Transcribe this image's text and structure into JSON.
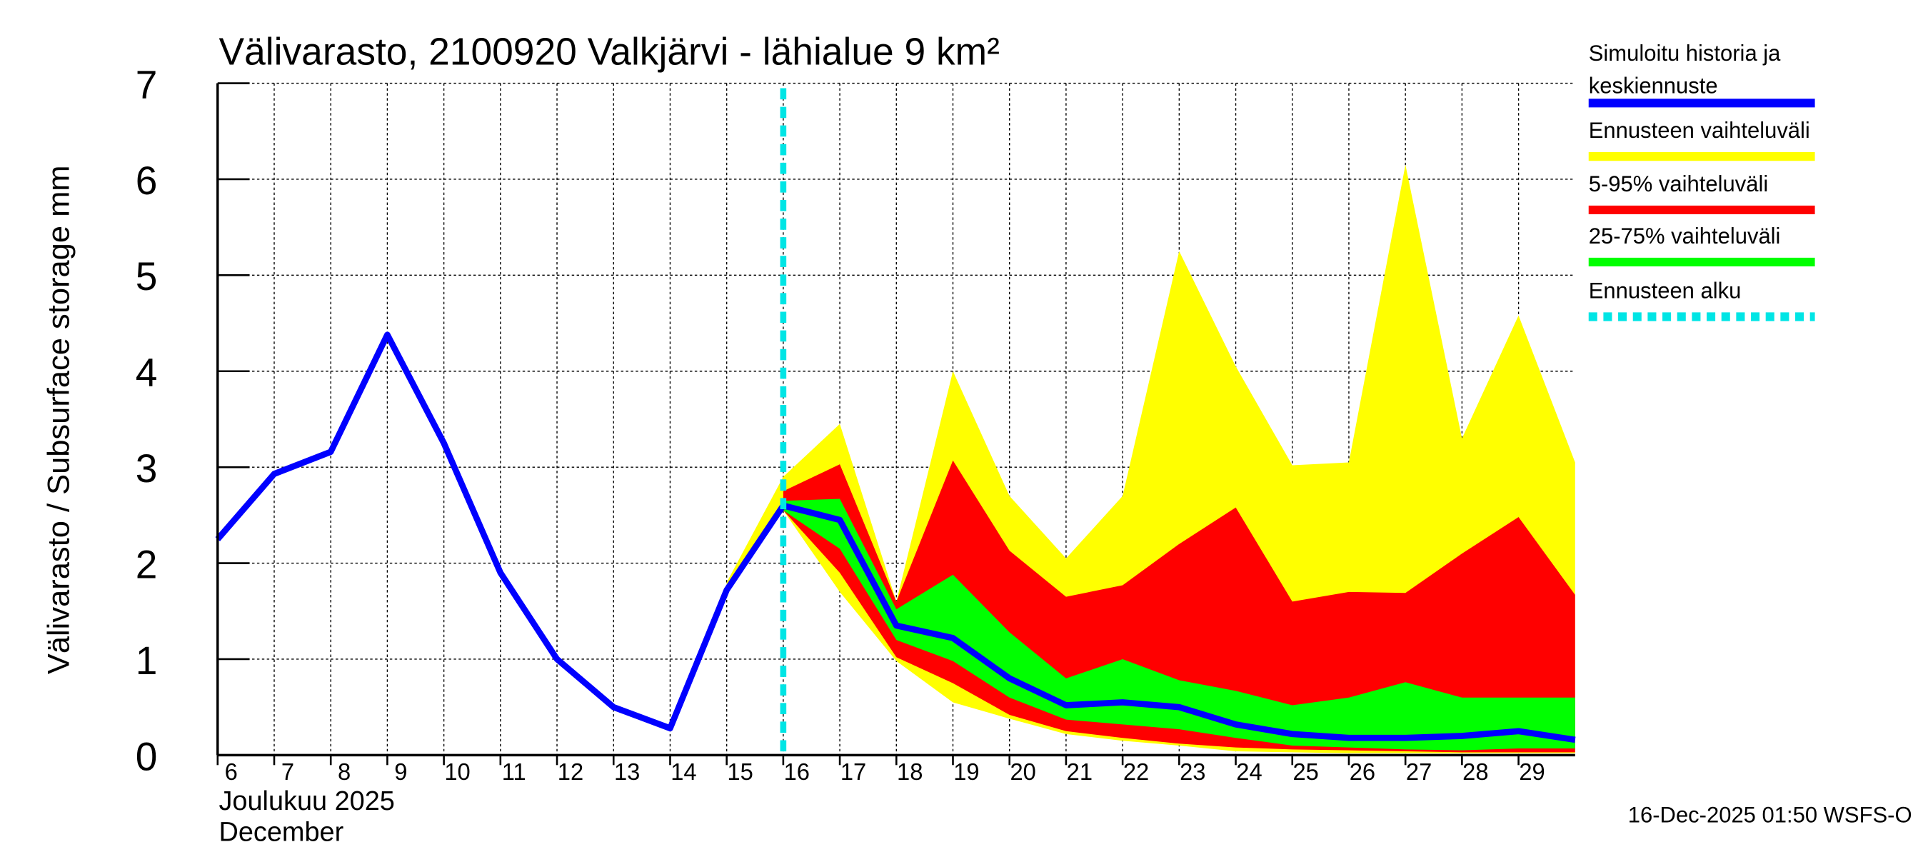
{
  "chart_data": {
    "type": "area",
    "title": "Välivarasto, 2100920 Valkjärvi - lähialue 9 km²",
    "ylabel": "Välivarasto / Subsurface storage  mm",
    "xlabel_line1": "Joulukuu  2025",
    "xlabel_line2": "December",
    "ylim": [
      0,
      7
    ],
    "yticks": [
      "0",
      "1",
      "2",
      "3",
      "4",
      "5",
      "6",
      "7"
    ],
    "xlim": [
      6,
      30
    ],
    "xticks": [
      "6",
      "7",
      "8",
      "9",
      "10",
      "11",
      "12",
      "13",
      "14",
      "15",
      "16",
      "17",
      "18",
      "19",
      "20",
      "21",
      "22",
      "23",
      "24",
      "25",
      "26",
      "27",
      "28",
      "29"
    ],
    "grid": true,
    "legend_position": "right",
    "forecast_start": 16,
    "colors": {
      "median": "#0000ff",
      "range": "#ffff00",
      "p5_95": "#ff0000",
      "p25_75": "#00ff00",
      "forecast_start": "#00e5e5"
    },
    "legend": [
      {
        "key": "median",
        "label_line1": "Simuloitu historia ja",
        "label_line2": "keskiennuste"
      },
      {
        "key": "range",
        "label_line1": "Ennusteen vaihteluväli",
        "label_line2": ""
      },
      {
        "key": "p5_95",
        "label_line1": "5-95% vaihteluväli",
        "label_line2": ""
      },
      {
        "key": "p25_75",
        "label_line1": "25-75% vaihteluväli",
        "label_line2": ""
      },
      {
        "key": "forecast_start",
        "label_line1": "Ennusteen alku",
        "label_line2": ""
      }
    ],
    "series": {
      "median": {
        "x": [
          6,
          7,
          8,
          9,
          10,
          11,
          12,
          13,
          14,
          15,
          16,
          17,
          18,
          19,
          20,
          21,
          22,
          23,
          24,
          25,
          26,
          27,
          28,
          29,
          30
        ],
        "y": [
          2.25,
          2.93,
          3.16,
          4.38,
          3.25,
          1.9,
          1.0,
          0.5,
          0.28,
          1.72,
          2.6,
          2.45,
          1.35,
          1.22,
          0.8,
          0.52,
          0.55,
          0.5,
          0.32,
          0.22,
          0.18,
          0.18,
          0.2,
          0.25,
          0.16
        ]
      },
      "range": {
        "x": [
          15,
          16,
          17,
          18,
          19,
          20,
          21,
          22,
          23,
          24,
          25,
          26,
          27,
          28,
          29,
          30
        ],
        "upper": [
          1.8,
          2.9,
          3.45,
          1.6,
          4.0,
          2.7,
          2.05,
          2.7,
          5.25,
          4.05,
          3.02,
          3.05,
          6.15,
          3.3,
          4.58,
          3.05
        ],
        "lower": [
          1.7,
          2.55,
          1.7,
          0.98,
          0.55,
          0.38,
          0.22,
          0.15,
          0.1,
          0.04,
          0.03,
          0.02,
          0.02,
          0.02,
          0.02,
          0.02
        ]
      },
      "p5_95": {
        "x": [
          16,
          17,
          18,
          19,
          20,
          21,
          22,
          23,
          24,
          25,
          26,
          27,
          28,
          29,
          30
        ],
        "upper": [
          2.75,
          3.03,
          1.6,
          3.07,
          2.13,
          1.65,
          1.77,
          2.2,
          2.58,
          1.6,
          1.7,
          1.69,
          2.1,
          2.48,
          1.67
        ],
        "lower": [
          2.55,
          1.9,
          1.02,
          0.75,
          0.42,
          0.25,
          0.18,
          0.12,
          0.08,
          0.06,
          0.05,
          0.04,
          0.03,
          0.03,
          0.03
        ]
      },
      "p25_75": {
        "x": [
          16,
          17,
          18,
          19,
          20,
          21,
          22,
          23,
          24,
          25,
          26,
          27,
          28,
          29,
          30
        ],
        "upper": [
          2.65,
          2.67,
          1.52,
          1.88,
          1.28,
          0.8,
          1.0,
          0.78,
          0.67,
          0.52,
          0.6,
          0.76,
          0.6,
          0.6,
          0.6
        ],
        "lower": [
          2.55,
          2.15,
          1.2,
          0.98,
          0.6,
          0.37,
          0.32,
          0.27,
          0.18,
          0.1,
          0.08,
          0.06,
          0.05,
          0.07,
          0.07
        ]
      }
    }
  },
  "footer": "16-Dec-2025 01:50 WSFS-O"
}
